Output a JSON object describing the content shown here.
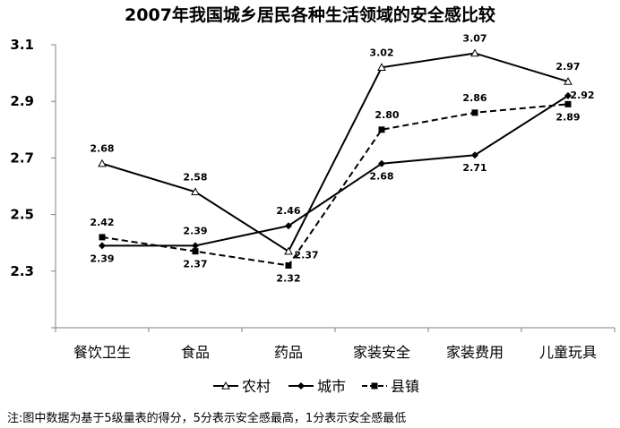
{
  "chart_data": {
    "type": "line",
    "title": "2007年我国城乡居民各种生活领域的安全感比较",
    "categories": [
      "餐饮卫生",
      "食品",
      "药品",
      "家装安全",
      "家装费用",
      "儿童玩具"
    ],
    "yticks": [
      "3.1",
      "2.9",
      "2.7",
      "2.5",
      "2.3"
    ],
    "ytick_values": [
      3.1,
      2.9,
      2.7,
      2.5,
      2.3
    ],
    "ylim": [
      2.1,
      3.1
    ],
    "grid": false,
    "legend_position": "bottom",
    "series": [
      {
        "name": "农村",
        "marker": "triangle-open",
        "line": "solid",
        "values": [
          2.68,
          2.58,
          2.37,
          3.02,
          3.07,
          2.97
        ],
        "labels": [
          "2.68",
          "2.58",
          "2.37",
          "3.02",
          "3.07",
          "2.97"
        ]
      },
      {
        "name": "城市",
        "marker": "diamond",
        "line": "solid",
        "values": [
          2.39,
          2.39,
          2.46,
          2.68,
          2.71,
          2.92
        ],
        "labels": [
          "2.39",
          "2.39",
          "2.46",
          "2.68",
          "2.71",
          "2.92"
        ]
      },
      {
        "name": "县镇",
        "marker": "square",
        "line": "dashed",
        "values": [
          2.42,
          2.37,
          2.32,
          2.8,
          2.86,
          2.89
        ],
        "labels": [
          "2.42",
          "2.37",
          "2.32",
          "2.80",
          "2.86",
          "2.89"
        ]
      }
    ],
    "note": "注:图中数据为基于5级量表的得分，5分表示安全感最高，1分表示安全感最低",
    "colors": {
      "lines": "#000000",
      "axis": "#808080"
    }
  }
}
